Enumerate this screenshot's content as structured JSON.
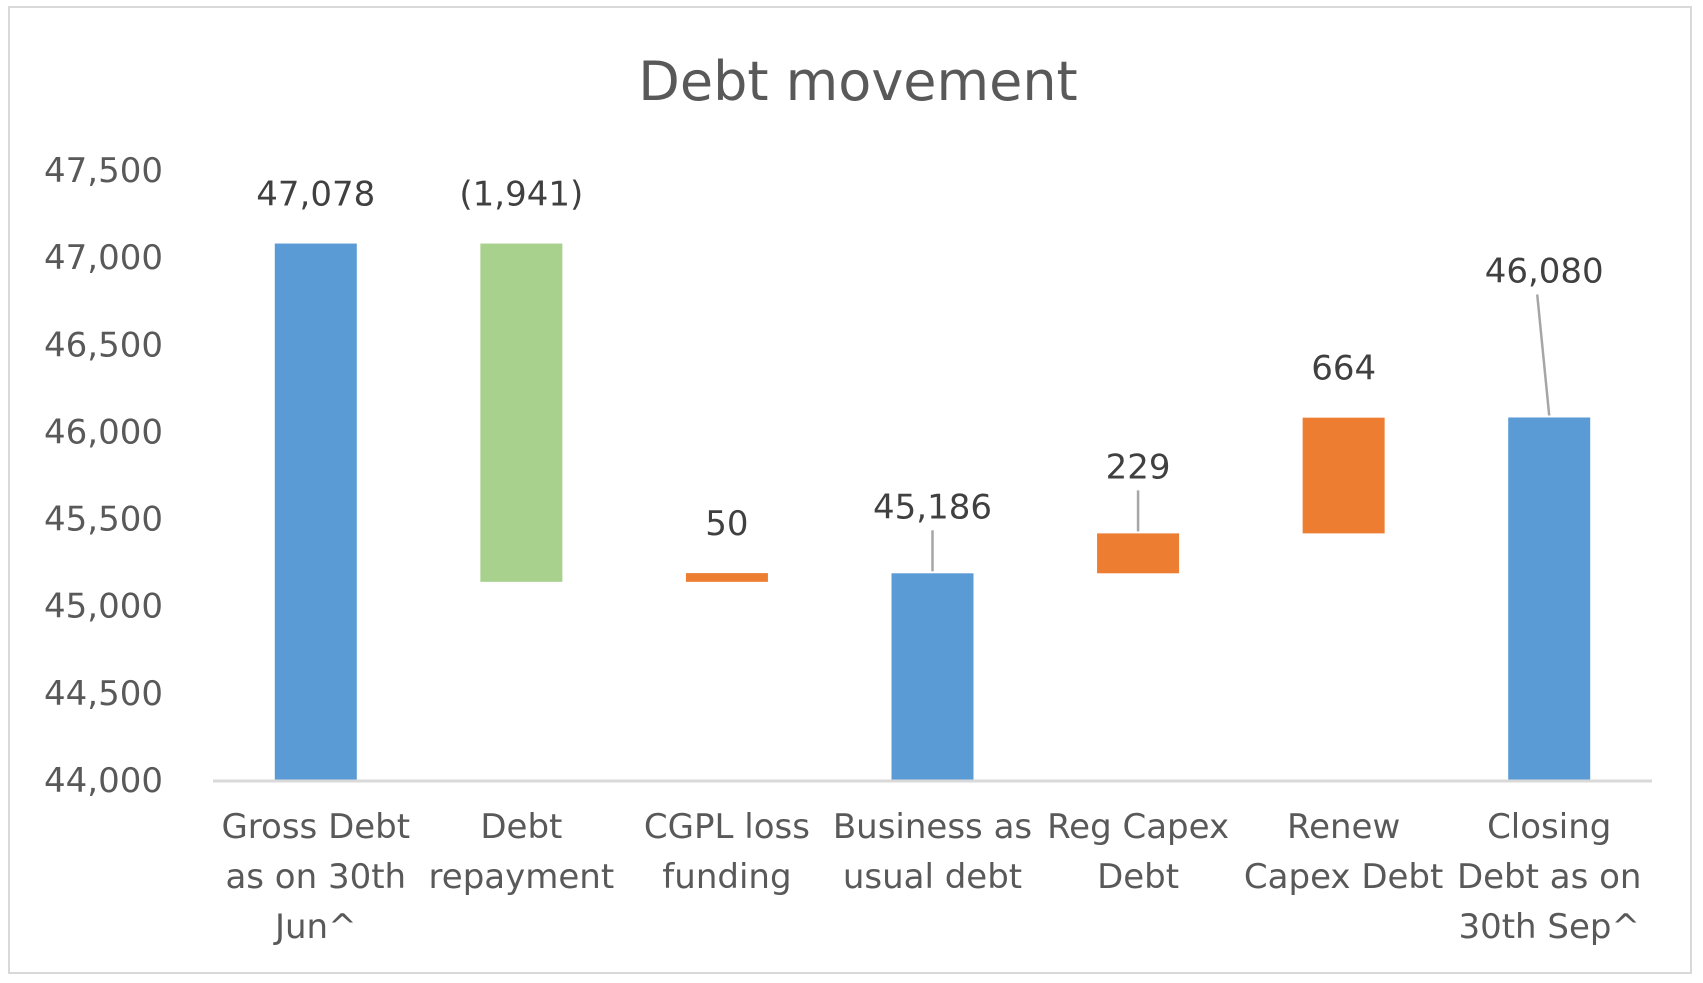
{
  "chart_data": {
    "type": "bar",
    "subtype": "waterfall",
    "title": "Debt movement",
    "xlabel": "",
    "ylabel": "",
    "ylim": [
      44000,
      47500
    ],
    "yticks": [
      "44,000",
      "44,500",
      "45,000",
      "45,500",
      "46,000",
      "46,500",
      "47,000",
      "47,500"
    ],
    "ytick_values": [
      44000,
      44500,
      45000,
      45500,
      46000,
      46500,
      47000,
      47500
    ],
    "grid": false,
    "legend": "none",
    "colors": {
      "total": "#5b9bd5",
      "decrease": "#a9d18e",
      "increase": "#ed7d31"
    },
    "categories": [
      [
        "Gross Debt",
        "as on 30th",
        "Jun^"
      ],
      [
        "Debt",
        "repayment"
      ],
      [
        "CGPL loss",
        "funding"
      ],
      [
        "Business as",
        "usual debt"
      ],
      [
        "Reg Capex",
        "Debt"
      ],
      [
        "Renew",
        "Capex Debt"
      ],
      [
        "Closing",
        "Debt as on",
        "30th Sep^"
      ]
    ],
    "bars": [
      {
        "kind": "total",
        "start": 44000,
        "end": 47078,
        "label": "47,078"
      },
      {
        "kind": "decrease",
        "start": 47078,
        "end": 45137,
        "label": "(1,941)"
      },
      {
        "kind": "increase",
        "start": 45137,
        "end": 45187,
        "label": "50"
      },
      {
        "kind": "total",
        "start": 44000,
        "end": 45186,
        "label": "45,186"
      },
      {
        "kind": "increase",
        "start": 45186,
        "end": 45415,
        "label": "229"
      },
      {
        "kind": "increase",
        "start": 45415,
        "end": 46079,
        "label": "664"
      },
      {
        "kind": "total",
        "start": 44000,
        "end": 46080,
        "label": "46,080"
      }
    ]
  }
}
